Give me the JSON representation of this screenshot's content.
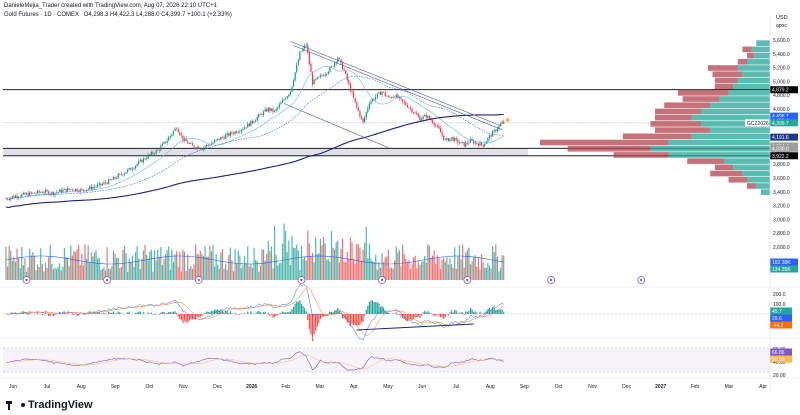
{
  "header": {
    "publisher": "DanieleMejia_Trader created with TradingView.com, Aug 07, 2026 22:10 UTC+1",
    "instrument": "Gold Futures · 1D · COMEX",
    "ohlc": "O4,298.3  H4,422.3  L4,288.0  C4,399.7  +100.1 (+2.33%)"
  },
  "brand": {
    "name": "TradingView"
  },
  "chart_data": {
    "type": "candlestick",
    "currency": "USD",
    "axis_unit": "apoc",
    "y_ticks": [
      "5,600.0",
      "5,400.0",
      "5,200.0",
      "5,000.0",
      "4,800.0",
      "4,600.0",
      "4,400.0",
      "4,200.0",
      "4,000.0",
      "3,800.0",
      "3,600.0",
      "3,400.0",
      "3,200.0",
      "3,000.0",
      "2,800.0",
      "2,600.0"
    ],
    "x_ticks": [
      "Jun",
      "Jul",
      "Aug",
      "Sep",
      "Oct",
      "Nov",
      "Dec",
      "2026",
      "Feb",
      "Mar",
      "Apr",
      "May",
      "Jun",
      "Jul",
      "Aug",
      "Sep",
      "Oct",
      "Nov",
      "Dec",
      "2027",
      "Feb",
      "Mar",
      "Apr"
    ],
    "price_range": [
      2400,
      5600
    ],
    "price_path": [
      [
        0,
        3300
      ],
      [
        6,
        3340
      ],
      [
        12,
        3360
      ],
      [
        18,
        3380
      ],
      [
        24,
        3400
      ],
      [
        30,
        3380
      ],
      [
        36,
        3420
      ],
      [
        42,
        3440
      ],
      [
        48,
        3420
      ],
      [
        54,
        3460
      ],
      [
        60,
        3500
      ],
      [
        66,
        3560
      ],
      [
        72,
        3640
      ],
      [
        78,
        3720
      ],
      [
        84,
        3820
      ],
      [
        90,
        3920
      ],
      [
        96,
        4000
      ],
      [
        102,
        4150
      ],
      [
        108,
        4340
      ],
      [
        112,
        4160
      ],
      [
        118,
        4060
      ],
      [
        124,
        4040
      ],
      [
        130,
        4100
      ],
      [
        136,
        4180
      ],
      [
        142,
        4240
      ],
      [
        148,
        4300
      ],
      [
        154,
        4380
      ],
      [
        160,
        4500
      ],
      [
        166,
        4600
      ],
      [
        170,
        4560
      ],
      [
        174,
        4680
      ],
      [
        180,
        4860
      ],
      [
        186,
        5400
      ],
      [
        190,
        5540
      ],
      [
        194,
        4980
      ],
      [
        198,
        5050
      ],
      [
        202,
        5120
      ],
      [
        206,
        5200
      ],
      [
        210,
        5350
      ],
      [
        214,
        5150
      ],
      [
        218,
        4880
      ],
      [
        222,
        4620
      ],
      [
        226,
        4400
      ],
      [
        230,
        4700
      ],
      [
        234,
        4780
      ],
      [
        238,
        4850
      ],
      [
        242,
        4760
      ],
      [
        246,
        4800
      ],
      [
        250,
        4720
      ],
      [
        254,
        4650
      ],
      [
        258,
        4560
      ],
      [
        262,
        4460
      ],
      [
        266,
        4500
      ],
      [
        270,
        4420
      ],
      [
        274,
        4300
      ],
      [
        278,
        4140
      ],
      [
        282,
        4180
      ],
      [
        286,
        4120
      ],
      [
        290,
        4080
      ],
      [
        294,
        4140
      ],
      [
        298,
        4100
      ],
      [
        302,
        4080
      ],
      [
        306,
        4200
      ],
      [
        310,
        4298
      ],
      [
        314,
        4399.7
      ]
    ],
    "price_labels": [
      {
        "value": "4,879.2",
        "price": 4879.2,
        "color": "#000000"
      },
      {
        "value": "4,496.7",
        "price": 4496.7,
        "color": "#2962ff"
      },
      {
        "value": "4,436.4",
        "price": 4436.4,
        "color": "#2962ff"
      },
      {
        "value": "4,399.7",
        "price": 4399.7,
        "color": "#26a69a",
        "tag": "GCZ2026"
      },
      {
        "value": "4,191.6",
        "price": 4191.6,
        "color": "#1e3a8a"
      },
      {
        "value": "4,064.4",
        "price": 4064.4,
        "color": "#9e9e9e"
      },
      {
        "value": "4,030.0",
        "price": 4030.0,
        "color": "#9e9e9e"
      },
      {
        "value": "3,922.2",
        "price": 3922.2,
        "color": "#000000"
      }
    ],
    "horizontal_levels": [
      4879.2,
      3922.2,
      4030.0
    ],
    "volume_labels": [
      {
        "value": "182.38K",
        "color": "#2962ff"
      },
      {
        "value": "134.35K",
        "color": "#26a69a"
      }
    ],
    "macd": {
      "y_ticks": [
        "200.0",
        "100.0",
        "0.0",
        "-100.0"
      ],
      "labels": [
        {
          "value": "45.7",
          "color": "#26a69a"
        },
        {
          "value": "29.6",
          "color": "#2962ff"
        },
        {
          "value": "-14.2",
          "color": "#ff6d00"
        }
      ]
    },
    "rsi": {
      "y_ticks": [
        "80.00",
        "40.00",
        "20.00"
      ],
      "labels": [
        {
          "value": "66.86",
          "color": "#7e57c2"
        },
        {
          "value": "50.59",
          "color": "#ffb74d"
        }
      ]
    },
    "volume_profile": [
      {
        "price": 5550,
        "up": 0.06,
        "down": 0.0
      },
      {
        "price": 5460,
        "up": 0.08,
        "down": 0.04
      },
      {
        "price": 5370,
        "up": 0.07,
        "down": 0.03
      },
      {
        "price": 5280,
        "up": 0.1,
        "down": 0.04
      },
      {
        "price": 5190,
        "up": 0.14,
        "down": 0.13
      },
      {
        "price": 5100,
        "up": 0.12,
        "down": 0.13
      },
      {
        "price": 5010,
        "up": 0.14,
        "down": 0.1
      },
      {
        "price": 4920,
        "up": 0.16,
        "down": 0.08
      },
      {
        "price": 4830,
        "up": 0.18,
        "down": 0.22
      },
      {
        "price": 4740,
        "up": 0.22,
        "down": 0.16
      },
      {
        "price": 4650,
        "up": 0.26,
        "down": 0.2
      },
      {
        "price": 4560,
        "up": 0.3,
        "down": 0.2
      },
      {
        "price": 4470,
        "up": 0.34,
        "down": 0.16
      },
      {
        "price": 4380,
        "up": 0.3,
        "down": 0.22
      },
      {
        "price": 4290,
        "up": 0.26,
        "down": 0.24
      },
      {
        "price": 4200,
        "up": 0.34,
        "down": 0.3
      },
      {
        "price": 4110,
        "up": 0.44,
        "down": 0.56
      },
      {
        "price": 4020,
        "up": 0.52,
        "down": 0.36
      },
      {
        "price": 3930,
        "up": 0.44,
        "down": 0.24
      },
      {
        "price": 3840,
        "up": 0.2,
        "down": 0.16
      },
      {
        "price": 3750,
        "up": 0.16,
        "down": 0.08
      },
      {
        "price": 3660,
        "up": 0.12,
        "down": 0.14
      },
      {
        "price": 3570,
        "up": 0.1,
        "down": 0.08
      },
      {
        "price": 3480,
        "up": 0.06,
        "down": 0.04
      },
      {
        "price": 3390,
        "up": 0.04,
        "down": 0.0
      }
    ],
    "event_icons": [
      {
        "x": 13
      },
      {
        "x": 64
      },
      {
        "x": 122
      },
      {
        "x": 187
      },
      {
        "x": 238
      },
      {
        "x": 292
      },
      {
        "x": 345
      },
      {
        "x": 402
      }
    ]
  }
}
